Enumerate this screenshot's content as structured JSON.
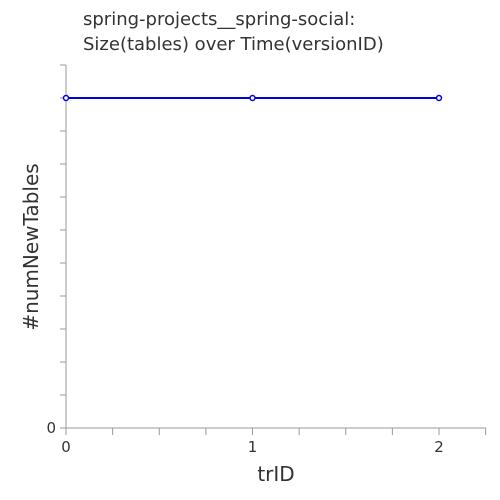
{
  "chart_data": {
    "type": "line",
    "title_lines": [
      "spring-projects__spring-social:",
      "Size(tables) over Time(versionID)"
    ],
    "xlabel": "trID",
    "ylabel": "#numNewTables",
    "x": [
      0,
      1,
      2
    ],
    "series": [
      {
        "values": [
          1,
          1,
          1
        ],
        "color": "#0000dd"
      }
    ],
    "xlim": [
      0,
      2.25
    ],
    "ylim": [
      0,
      1.1
    ],
    "x_tick_labels": [
      "0",
      "1",
      "2"
    ],
    "y_tick_labels": [
      "0"
    ],
    "grid": false
  }
}
